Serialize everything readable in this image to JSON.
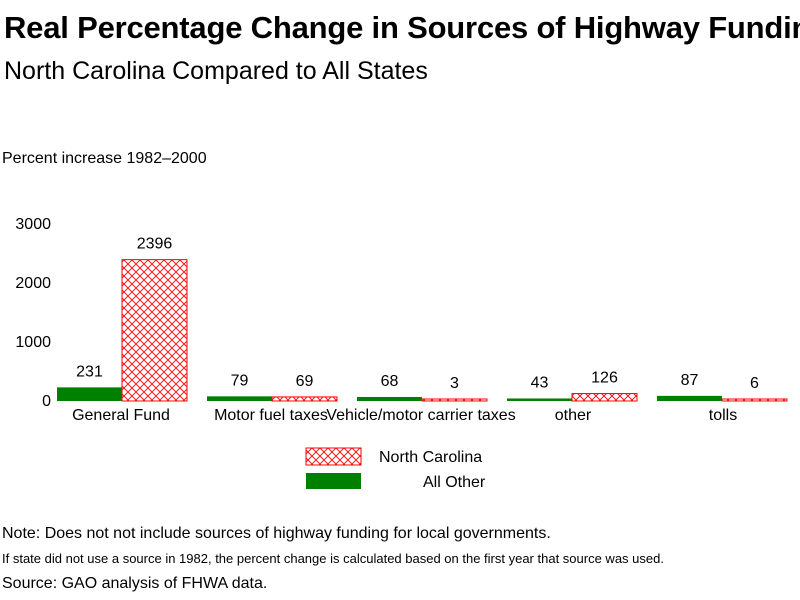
{
  "header": {
    "title": "Real Percentage Change in Sources of Highway Funding",
    "subtitle": "North Carolina Compared to All States"
  },
  "notes": {
    "line1": "Note: Does not not include sources of highway funding for local governments.",
    "line2": "If state did not use a source in 1982, the percent change is calculated based on the first year that source was used.",
    "line3": "Source: GAO analysis of FHWA data."
  },
  "colors": {
    "all_other": "#008000",
    "north_carolina": "#ff0000"
  },
  "chart_data": {
    "type": "bar",
    "ylabel": "Percent increase 1982–2000",
    "ylim": [
      0,
      3000
    ],
    "yticks": [
      "0",
      "1000",
      "2000",
      "3000"
    ],
    "categories": [
      "General Fund",
      "Motor fuel taxes",
      "Vehicle/motor carrier taxes",
      "other",
      "tolls"
    ],
    "series": [
      {
        "name": "All Other",
        "values": [
          231,
          79,
          68,
          43,
          87
        ],
        "labels": [
          "231",
          "79",
          "68",
          "43",
          "87"
        ]
      },
      {
        "name": "North Carolina",
        "values": [
          2396,
          69,
          3,
          126,
          6
        ],
        "labels": [
          "2396",
          "69",
          "3",
          "126",
          "6"
        ]
      }
    ],
    "legend": {
      "placement": "bottom-center",
      "entries": [
        "North Carolina",
        "All Other"
      ]
    },
    "grid": false
  }
}
